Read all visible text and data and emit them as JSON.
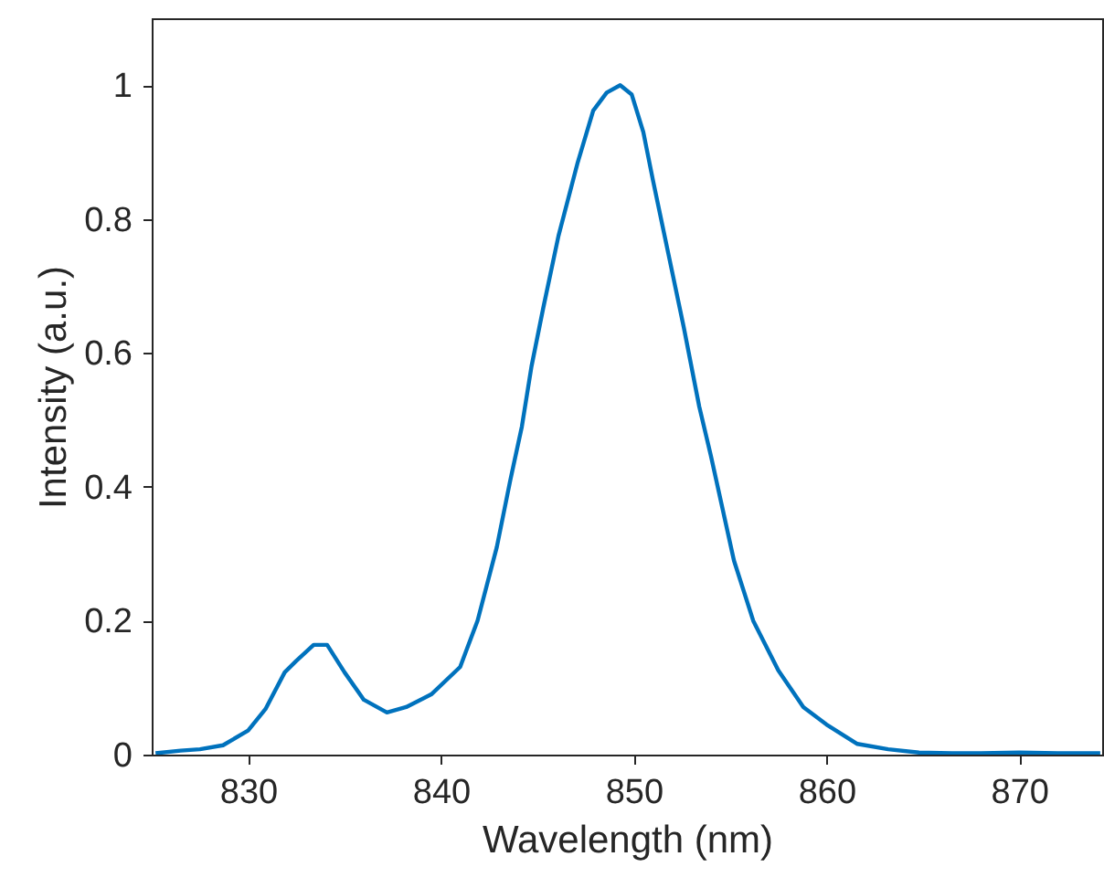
{
  "chart_data": {
    "type": "line",
    "xlabel": "Wavelength (nm)",
    "ylabel": "Intensity (a.u.)",
    "xlim": [
      825,
      874.3
    ],
    "ylim": [
      0,
      1.1
    ],
    "xticks": [
      830,
      840,
      850,
      860,
      870
    ],
    "yticks": [
      0,
      0.2,
      0.4,
      0.6,
      0.8,
      1
    ],
    "grid": false,
    "x": [
      825.2,
      826.5,
      827.5,
      828.7,
      830,
      830.9,
      831.9,
      832.5,
      833.4,
      834.1,
      835,
      836,
      837.2,
      838.2,
      839.5,
      841,
      841.9,
      842.9,
      843.6,
      844.2,
      844.7,
      845.3,
      846.1,
      847.1,
      847.9,
      848.6,
      849.3,
      849.9,
      850.5,
      851,
      851.8,
      852.6,
      853.4,
      854,
      855.2,
      856.2,
      857.5,
      858.8,
      860,
      861.6,
      863.2,
      864.8,
      866.5,
      868,
      870,
      872,
      874.2
    ],
    "series": [
      {
        "color": "#0072bd",
        "values": [
          0.002,
          0.006,
          0.008,
          0.014,
          0.036,
          0.068,
          0.123,
          0.14,
          0.164,
          0.164,
          0.123,
          0.082,
          0.063,
          0.071,
          0.09,
          0.131,
          0.2,
          0.31,
          0.41,
          0.49,
          0.58,
          0.666,
          0.775,
          0.885,
          0.962,
          0.989,
          1,
          0.986,
          0.93,
          0.858,
          0.748,
          0.638,
          0.52,
          0.447,
          0.29,
          0.2,
          0.126,
          0.071,
          0.045,
          0.016,
          0.008,
          0.003,
          0.002,
          0.002,
          0.003,
          0.002,
          0.002
        ]
      }
    ]
  }
}
